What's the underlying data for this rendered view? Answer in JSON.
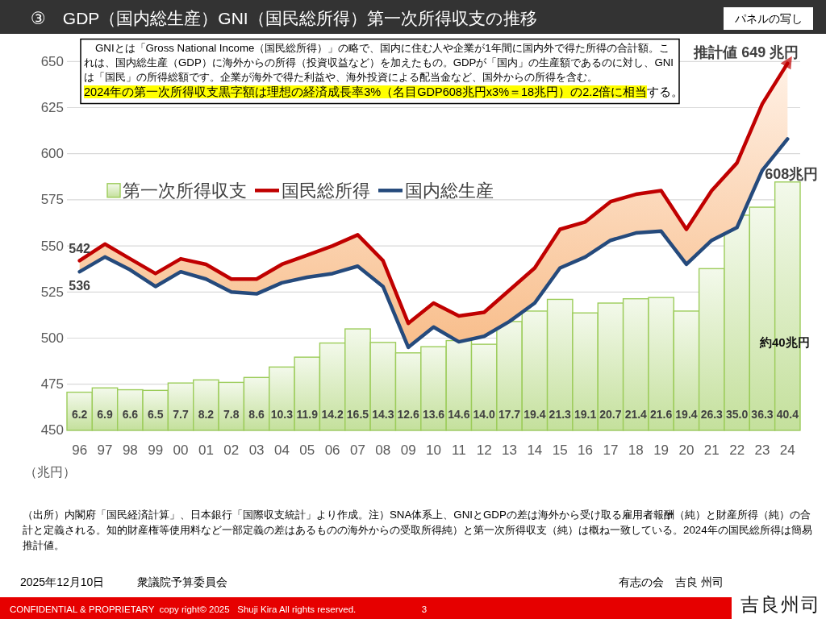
{
  "chart_data": {
    "type": "bar",
    "title": "③　GDP（国内総生産）GNI（国民総所得）第一次所得収支の推移",
    "ylabel": "（兆円）",
    "categories": [
      "96",
      "97",
      "98",
      "99",
      "00",
      "01",
      "02",
      "03",
      "04",
      "05",
      "06",
      "07",
      "08",
      "09",
      "10",
      "11",
      "12",
      "13",
      "14",
      "15",
      "16",
      "17",
      "18",
      "19",
      "20",
      "21",
      "22",
      "23",
      "24"
    ],
    "series": [
      {
        "name": "第一次所得収支",
        "axis": "y2",
        "color": "#9ccc5a",
        "values": [
          6.2,
          6.9,
          6.6,
          6.5,
          7.7,
          8.2,
          7.8,
          8.6,
          10.3,
          11.9,
          14.2,
          16.5,
          14.3,
          12.6,
          13.6,
          14.6,
          14.0,
          17.7,
          19.4,
          21.3,
          19.1,
          20.7,
          21.4,
          21.6,
          19.4,
          26.3,
          35.0,
          36.3,
          40.4
        ],
        "value_labels": [
          "6.2",
          "6.9",
          "6.6",
          "6.5",
          "7.7",
          "8.2",
          "7.8",
          "8.6",
          "10.3",
          "11.9",
          "14.2",
          "16.5",
          "14.3",
          "12.6",
          "13.6",
          "14.6",
          "14.0",
          "17.7",
          "19.4",
          "21.3",
          "19.1",
          "20.7",
          "21.4",
          "21.6",
          "19.4",
          "26.3",
          "35.0",
          "36.3",
          "40.4"
        ]
      },
      {
        "name": "国民総所得",
        "type": "line",
        "color": "#c00000",
        "values": [
          542,
          551,
          543,
          535,
          543,
          540,
          532,
          532,
          540,
          545,
          550,
          556,
          542,
          508,
          519,
          512,
          514,
          526,
          538,
          559,
          563,
          574,
          578,
          580,
          559,
          580,
          595,
          627,
          649
        ],
        "lower": [
          536,
          544,
          537,
          528,
          536,
          532,
          525,
          524,
          530,
          533,
          535,
          539,
          528,
          495,
          506,
          498,
          501,
          509,
          519,
          538,
          544,
          553,
          557,
          558,
          540,
          553,
          560,
          591,
          608
        ],
        "upper": [
          542,
          551,
          543,
          535,
          543,
          540,
          532,
          532,
          540,
          545,
          550,
          556,
          542,
          508,
          519,
          512,
          514,
          526,
          538,
          559,
          563,
          574,
          578,
          580,
          559,
          580,
          595,
          627,
          649
        ],
        "value_labels": [
          "542",
          null,
          null,
          null,
          null,
          null,
          null,
          null,
          null,
          null,
          null,
          null,
          null,
          null,
          null,
          null,
          null,
          null,
          null,
          null,
          null,
          null,
          null,
          null,
          null,
          null,
          null,
          null,
          null
        ]
      },
      {
        "name": "国内総生産",
        "type": "line",
        "color": "#254a7c",
        "values": [
          536,
          544,
          537,
          528,
          536,
          532,
          525,
          524,
          530,
          533,
          535,
          539,
          528,
          495,
          506,
          498,
          501,
          509,
          519,
          538,
          544,
          553,
          557,
          558,
          540,
          553,
          560,
          591,
          608
        ],
        "value_labels": [
          "536",
          null,
          null,
          null,
          null,
          null,
          null,
          null,
          null,
          null,
          null,
          null,
          null,
          null,
          null,
          null,
          null,
          null,
          null,
          null,
          null,
          null,
          null,
          null,
          null,
          null,
          null,
          null,
          null
        ]
      }
    ],
    "ylim": [
      450,
      650
    ],
    "yticks": [
      450,
      475,
      500,
      525,
      550,
      575,
      600,
      625,
      650
    ],
    "y2lim": [
      0,
      60
    ],
    "grid": "y",
    "legend": "top left",
    "annotations": [
      "GNIとは「Gross National Income（国民総所得）」の略で、国内に住む人や企業が1年間に国内外で得た所得の合計額。これは、国内総生産（GDP）に海外からの所得（投資収益など）を加えたもの。GDPが「国内」の生産額であるのに対し、GNIは「国民」の所得総額です。企業が海外で得た利益や、海外投資による配当金など、国外からの所得を含む。",
      "2024年の第一次所得収支黒字額は理想の経済成長率3%（名目GDP608兆円x3%＝18兆円）の2.2倍に相当",
      "する。",
      {
        "text": "推計値 649 兆円",
        "x": "24",
        "y": 649
      },
      {
        "text": "608兆円",
        "x": "24",
        "y": 608
      },
      "約40兆円",
      "（出所）内閣府「国民経済計算」、日本銀行「国際収支統計」より作成。注）SNA体系上、GNIとGDPの差は海外から受け取る雇用者報酬（純）と財産所得（純）の合計と定義される。知的財産権等使用料など一部定義の差はあるものの海外からの受取所得純）と第一次所得収支（純）は概ね一致している。2024年の国民総所得は簡易推計値。",
      "2025年12月10日",
      "衆議院予算委員会",
      "有志の会　吉良 州司",
      "CONFIDENTIAL & PROPRIETARY  copy right© 2025   Shuji Kira All rights reserved.",
      "3",
      "吉良州司",
      "パネルの写し"
    ]
  }
}
